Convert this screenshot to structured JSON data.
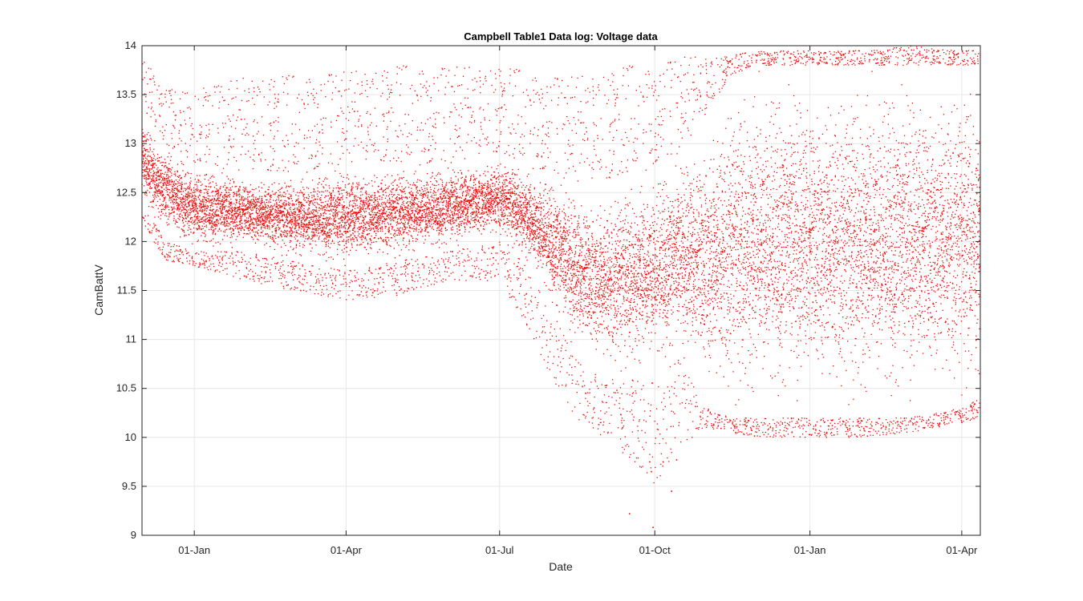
{
  "chart_data": {
    "type": "scatter",
    "title": "Campbell Table1 Data log: Voltage data",
    "xlabel": "Date",
    "ylabel": "CamBattV",
    "x_axis": {
      "kind": "date",
      "range": [
        "2017-12-01",
        "2019-04-12"
      ],
      "ticks": [
        {
          "date": "2018-01-01",
          "label": "01-Jan"
        },
        {
          "date": "2018-04-01",
          "label": "01-Apr"
        },
        {
          "date": "2018-07-01",
          "label": "01-Jul"
        },
        {
          "date": "2018-10-01",
          "label": "01-Oct"
        },
        {
          "date": "2019-01-01",
          "label": "01-Jan"
        },
        {
          "date": "2019-04-01",
          "label": "01-Apr"
        }
      ]
    },
    "ylim": [
      9,
      14
    ],
    "yticks": [
      "9",
      "9.5",
      "10",
      "10.5",
      "11",
      "11.5",
      "12",
      "12.5",
      "13",
      "13.5",
      "14"
    ],
    "grid": true,
    "marker_color": "#ff0000",
    "envelope": {
      "dates": [
        "2017-12-01",
        "2017-12-15",
        "2018-01-01",
        "2018-02-01",
        "2018-03-01",
        "2018-04-01",
        "2018-05-01",
        "2018-06-01",
        "2018-07-01",
        "2018-07-15",
        "2018-08-01",
        "2018-08-15",
        "2018-09-01",
        "2018-09-15",
        "2018-10-01",
        "2018-10-15",
        "2018-11-01",
        "2018-11-15",
        "2018-12-01",
        "2019-01-01",
        "2019-02-01",
        "2019-03-01",
        "2019-04-01",
        "2019-04-12"
      ],
      "typical_low": [
        12.4,
        12.0,
        11.9,
        11.9,
        11.8,
        11.7,
        11.8,
        11.9,
        12.0,
        11.8,
        11.3,
        10.8,
        10.6,
        10.6,
        10.6,
        10.8,
        10.3,
        10.2,
        10.2,
        10.2,
        10.2,
        10.2,
        10.3,
        10.4
      ],
      "typical_high": [
        13.3,
        13.0,
        12.8,
        12.7,
        12.7,
        12.8,
        12.8,
        12.8,
        12.9,
        12.8,
        12.7,
        12.6,
        12.6,
        12.7,
        12.8,
        12.9,
        13.3,
        13.7,
        13.8,
        13.8,
        13.8,
        13.8,
        13.8,
        13.8
      ],
      "minimum": [
        12.2,
        11.8,
        11.75,
        11.6,
        11.5,
        11.4,
        11.45,
        11.6,
        11.6,
        11.2,
        10.6,
        10.2,
        10.0,
        9.8,
        9.5,
        9.9,
        10.1,
        10.05,
        10.0,
        10.0,
        10.0,
        10.05,
        10.15,
        10.2
      ],
      "maximum": [
        13.9,
        13.6,
        13.55,
        13.7,
        13.7,
        13.75,
        13.8,
        13.8,
        13.8,
        13.75,
        13.7,
        13.7,
        13.75,
        13.8,
        13.8,
        13.9,
        13.9,
        13.9,
        13.95,
        13.95,
        13.95,
        14.0,
        13.95,
        13.95
      ]
    },
    "outliers": [
      {
        "x": "2018-08-21",
        "y": 10.45
      },
      {
        "x": "2018-08-26",
        "y": 10.3
      },
      {
        "x": "2018-09-12",
        "y": 10.1
      },
      {
        "x": "2018-09-16",
        "y": 9.22
      },
      {
        "x": "2018-09-28",
        "y": 9.75
      },
      {
        "x": "2018-09-29",
        "y": 9.65
      },
      {
        "x": "2018-09-30",
        "y": 9.08
      },
      {
        "x": "2018-10-06",
        "y": 9.75
      },
      {
        "x": "2018-10-11",
        "y": 9.45
      },
      {
        "x": "2018-10-14",
        "y": 9.77
      }
    ]
  }
}
